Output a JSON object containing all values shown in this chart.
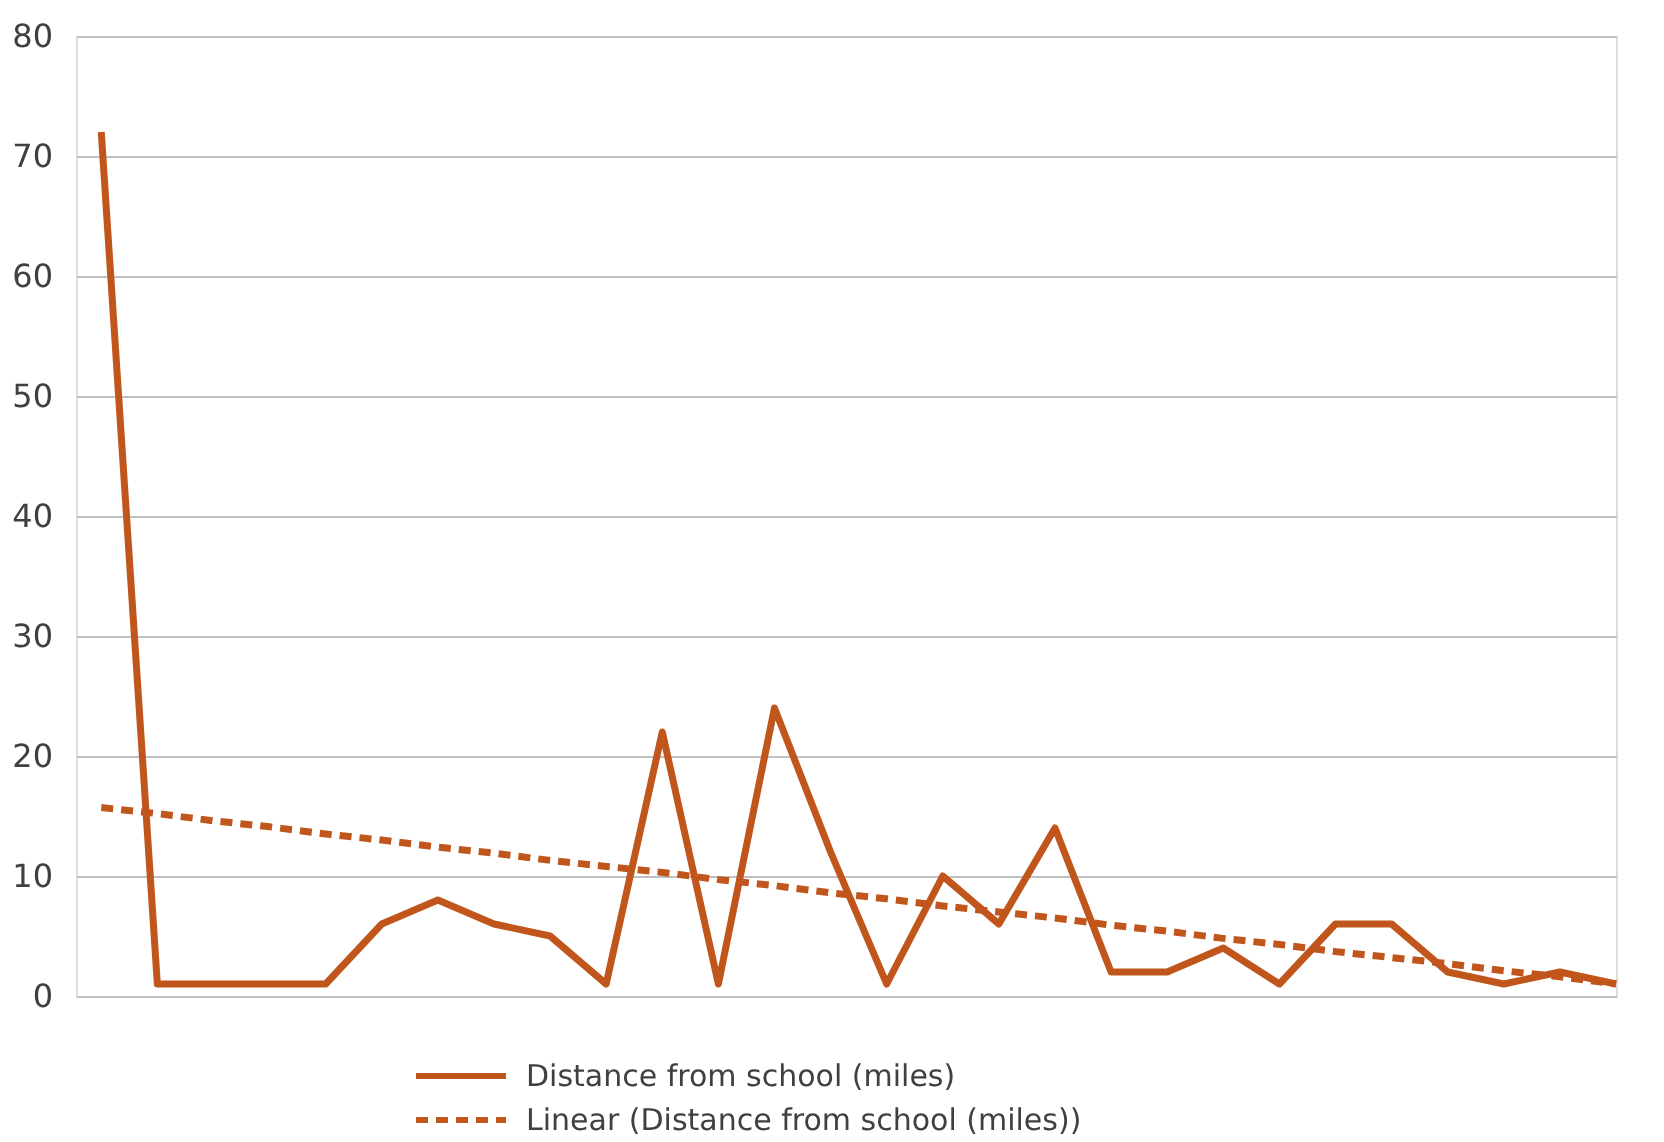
{
  "chart_data": {
    "type": "line",
    "categories": [
      null,
      null,
      null,
      null,
      null,
      null,
      null,
      null,
      null,
      null,
      null,
      null,
      null,
      null,
      null,
      null,
      null,
      null,
      null,
      null,
      null,
      null,
      null,
      null,
      null,
      null,
      null,
      null
    ],
    "series": [
      {
        "name": "Distance from school (miles)",
        "color": "#c0561b",
        "line_style": "solid",
        "values": [
          72,
          1,
          1,
          1,
          1,
          6,
          8,
          6,
          5,
          1,
          22,
          1,
          24,
          12,
          1,
          10,
          6,
          14,
          2,
          2,
          4,
          1,
          6,
          6,
          2,
          1,
          2,
          1
        ]
      },
      {
        "name": "Linear (Distance from school (miles))",
        "color": "#c0561b",
        "line_style": "dashed",
        "values": [
          15.7,
          15.2,
          14.6,
          14.1,
          13.5,
          13.0,
          12.4,
          11.9,
          11.3,
          10.8,
          10.3,
          9.7,
          9.2,
          8.6,
          8.1,
          7.5,
          7.0,
          6.5,
          5.9,
          5.4,
          4.8,
          4.3,
          3.7,
          3.2,
          2.7,
          2.1,
          1.6,
          1.0
        ]
      }
    ],
    "ylim": [
      0,
      80
    ],
    "yticks": [
      0,
      10,
      20,
      30,
      40,
      50,
      60,
      70,
      80
    ],
    "grid": "y",
    "legend": "bottom",
    "marker": "none",
    "tick_labels": "y"
  }
}
